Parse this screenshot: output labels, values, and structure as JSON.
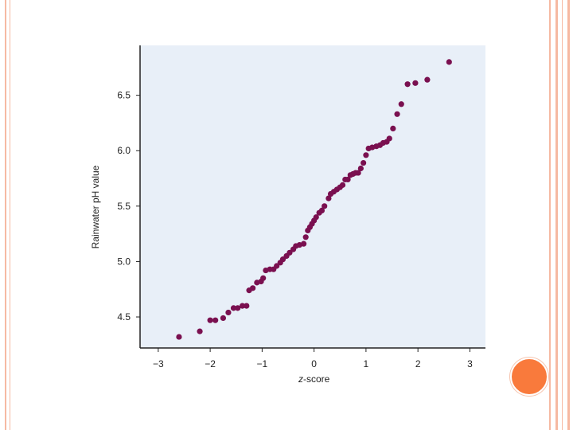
{
  "colors": {
    "plot_background": "#e8eff8",
    "marker": "#7a1050",
    "axis": "#222222",
    "slide_border": "#f6b9a2",
    "accent_circle": "#f97a3c"
  },
  "chart_data": {
    "type": "scatter",
    "title": "",
    "xlabel_italic": "z",
    "xlabel_rest": "-score",
    "ylabel": "Rainwater pH value",
    "xlim": [
      -3.35,
      3.3
    ],
    "ylim": [
      4.22,
      6.95
    ],
    "xticks": [
      -3,
      -2,
      -1,
      0,
      1,
      2,
      3
    ],
    "xtick_labels": [
      "−3",
      "−2",
      "−1",
      "0",
      "1",
      "2",
      "3"
    ],
    "yticks": [
      4.5,
      5.0,
      5.5,
      6.0,
      6.5
    ],
    "ytick_labels": [
      "4.5",
      "5.0",
      "5.5",
      "6.0",
      "6.5"
    ],
    "grid": false,
    "points": [
      [
        -2.6,
        4.32
      ],
      [
        -2.2,
        4.37
      ],
      [
        -2.0,
        4.47
      ],
      [
        -1.9,
        4.47
      ],
      [
        -1.75,
        4.49
      ],
      [
        -1.65,
        4.54
      ],
      [
        -1.55,
        4.58
      ],
      [
        -1.47,
        4.58
      ],
      [
        -1.38,
        4.6
      ],
      [
        -1.3,
        4.6
      ],
      [
        -1.25,
        4.74
      ],
      [
        -1.18,
        4.76
      ],
      [
        -1.1,
        4.81
      ],
      [
        -1.02,
        4.82
      ],
      [
        -0.98,
        4.85
      ],
      [
        -0.93,
        4.92
      ],
      [
        -0.85,
        4.93
      ],
      [
        -0.78,
        4.93
      ],
      [
        -0.72,
        4.96
      ],
      [
        -0.65,
        4.99
      ],
      [
        -0.6,
        5.02
      ],
      [
        -0.53,
        5.05
      ],
      [
        -0.47,
        5.08
      ],
      [
        -0.4,
        5.11
      ],
      [
        -0.35,
        5.14
      ],
      [
        -0.28,
        5.15
      ],
      [
        -0.2,
        5.16
      ],
      [
        -0.16,
        5.22
      ],
      [
        -0.12,
        5.28
      ],
      [
        -0.08,
        5.31
      ],
      [
        -0.04,
        5.34
      ],
      [
        0.0,
        5.37
      ],
      [
        0.04,
        5.4
      ],
      [
        0.1,
        5.44
      ],
      [
        0.15,
        5.46
      ],
      [
        0.2,
        5.5
      ],
      [
        0.28,
        5.57
      ],
      [
        0.32,
        5.61
      ],
      [
        0.38,
        5.63
      ],
      [
        0.44,
        5.65
      ],
      [
        0.5,
        5.67
      ],
      [
        0.55,
        5.69
      ],
      [
        0.6,
        5.74
      ],
      [
        0.65,
        5.74
      ],
      [
        0.7,
        5.78
      ],
      [
        0.75,
        5.79
      ],
      [
        0.8,
        5.8
      ],
      [
        0.85,
        5.8
      ],
      [
        0.9,
        5.84
      ],
      [
        0.95,
        5.89
      ],
      [
        1.0,
        5.96
      ],
      [
        1.05,
        6.02
      ],
      [
        1.12,
        6.03
      ],
      [
        1.2,
        6.04
      ],
      [
        1.27,
        6.05
      ],
      [
        1.33,
        6.07
      ],
      [
        1.4,
        6.08
      ],
      [
        1.45,
        6.11
      ],
      [
        1.52,
        6.2
      ],
      [
        1.6,
        6.33
      ],
      [
        1.68,
        6.42
      ],
      [
        1.8,
        6.6
      ],
      [
        1.95,
        6.61
      ],
      [
        2.18,
        6.64
      ],
      [
        2.6,
        6.8
      ]
    ]
  }
}
